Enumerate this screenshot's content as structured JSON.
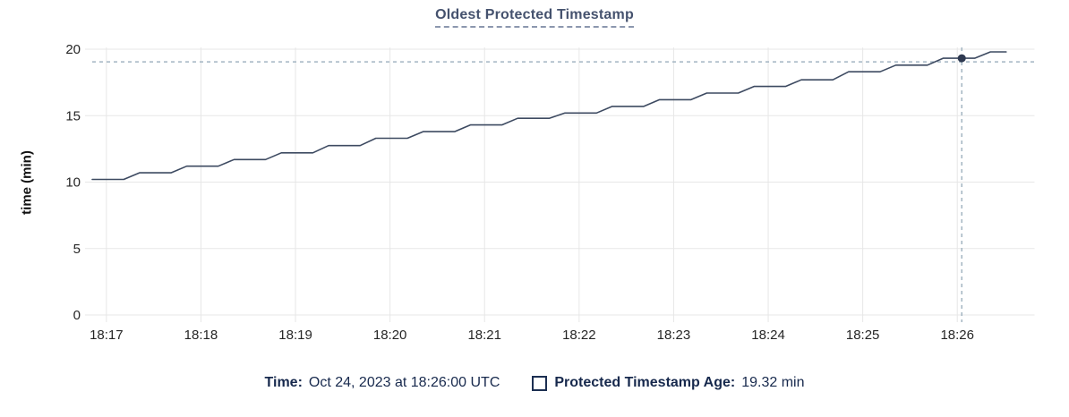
{
  "title": "Oldest Protected Timestamp",
  "y_axis_title": "time (min)",
  "legend": {
    "time_label": "Time:",
    "time_value": "Oct 24, 2023 at 18:26:00 UTC",
    "series_label": "Protected Timestamp Age:",
    "series_value": "19.32 min"
  },
  "colors": {
    "title": "#45526e",
    "line": "#3d4a61",
    "dot": "#2e3950",
    "grid": "#e7e7e7",
    "crosshair": "#a3b5c2",
    "tick_text": "#262626",
    "legend_text": "#17294d"
  },
  "chart_data": {
    "type": "line",
    "title": "Oldest Protected Timestamp",
    "xlabel": "",
    "ylabel": "time (min)",
    "ylim": [
      0,
      20
    ],
    "y_ticks": [
      0,
      5,
      10,
      15,
      20
    ],
    "x_ticks": [
      "18:17",
      "18:18",
      "18:19",
      "18:20",
      "18:21",
      "18:22",
      "18:23",
      "18:24",
      "18:25",
      "18:26"
    ],
    "x_start": "18:16:51",
    "x_end": "18:26:49",
    "grid": true,
    "legend_position": "bottom",
    "hover": {
      "time": "18:26:00",
      "value": 19.32,
      "value_label": "19.32 min"
    },
    "series": [
      {
        "name": "Protected Timestamp Age",
        "unit": "min",
        "points": [
          [
            0,
            10.2
          ],
          [
            20,
            10.2
          ],
          [
            30,
            10.7
          ],
          [
            50,
            10.7
          ],
          [
            60,
            11.2
          ],
          [
            80,
            11.2
          ],
          [
            90,
            11.7
          ],
          [
            110,
            11.7
          ],
          [
            120,
            12.2
          ],
          [
            140,
            12.2
          ],
          [
            150,
            12.75
          ],
          [
            170,
            12.75
          ],
          [
            180,
            13.3
          ],
          [
            200,
            13.3
          ],
          [
            210,
            13.8
          ],
          [
            230,
            13.8
          ],
          [
            240,
            14.3
          ],
          [
            260,
            14.3
          ],
          [
            270,
            14.8
          ],
          [
            290,
            14.8
          ],
          [
            300,
            15.2
          ],
          [
            320,
            15.2
          ],
          [
            330,
            15.7
          ],
          [
            350,
            15.7
          ],
          [
            360,
            16.2
          ],
          [
            380,
            16.2
          ],
          [
            390,
            16.7
          ],
          [
            410,
            16.7
          ],
          [
            420,
            17.2
          ],
          [
            440,
            17.2
          ],
          [
            450,
            17.7
          ],
          [
            470,
            17.7
          ],
          [
            480,
            18.3
          ],
          [
            500,
            18.3
          ],
          [
            510,
            18.8
          ],
          [
            530,
            18.8
          ],
          [
            540,
            19.32
          ],
          [
            560,
            19.32
          ],
          [
            570,
            19.8
          ],
          [
            580,
            19.8
          ]
        ]
      }
    ]
  }
}
